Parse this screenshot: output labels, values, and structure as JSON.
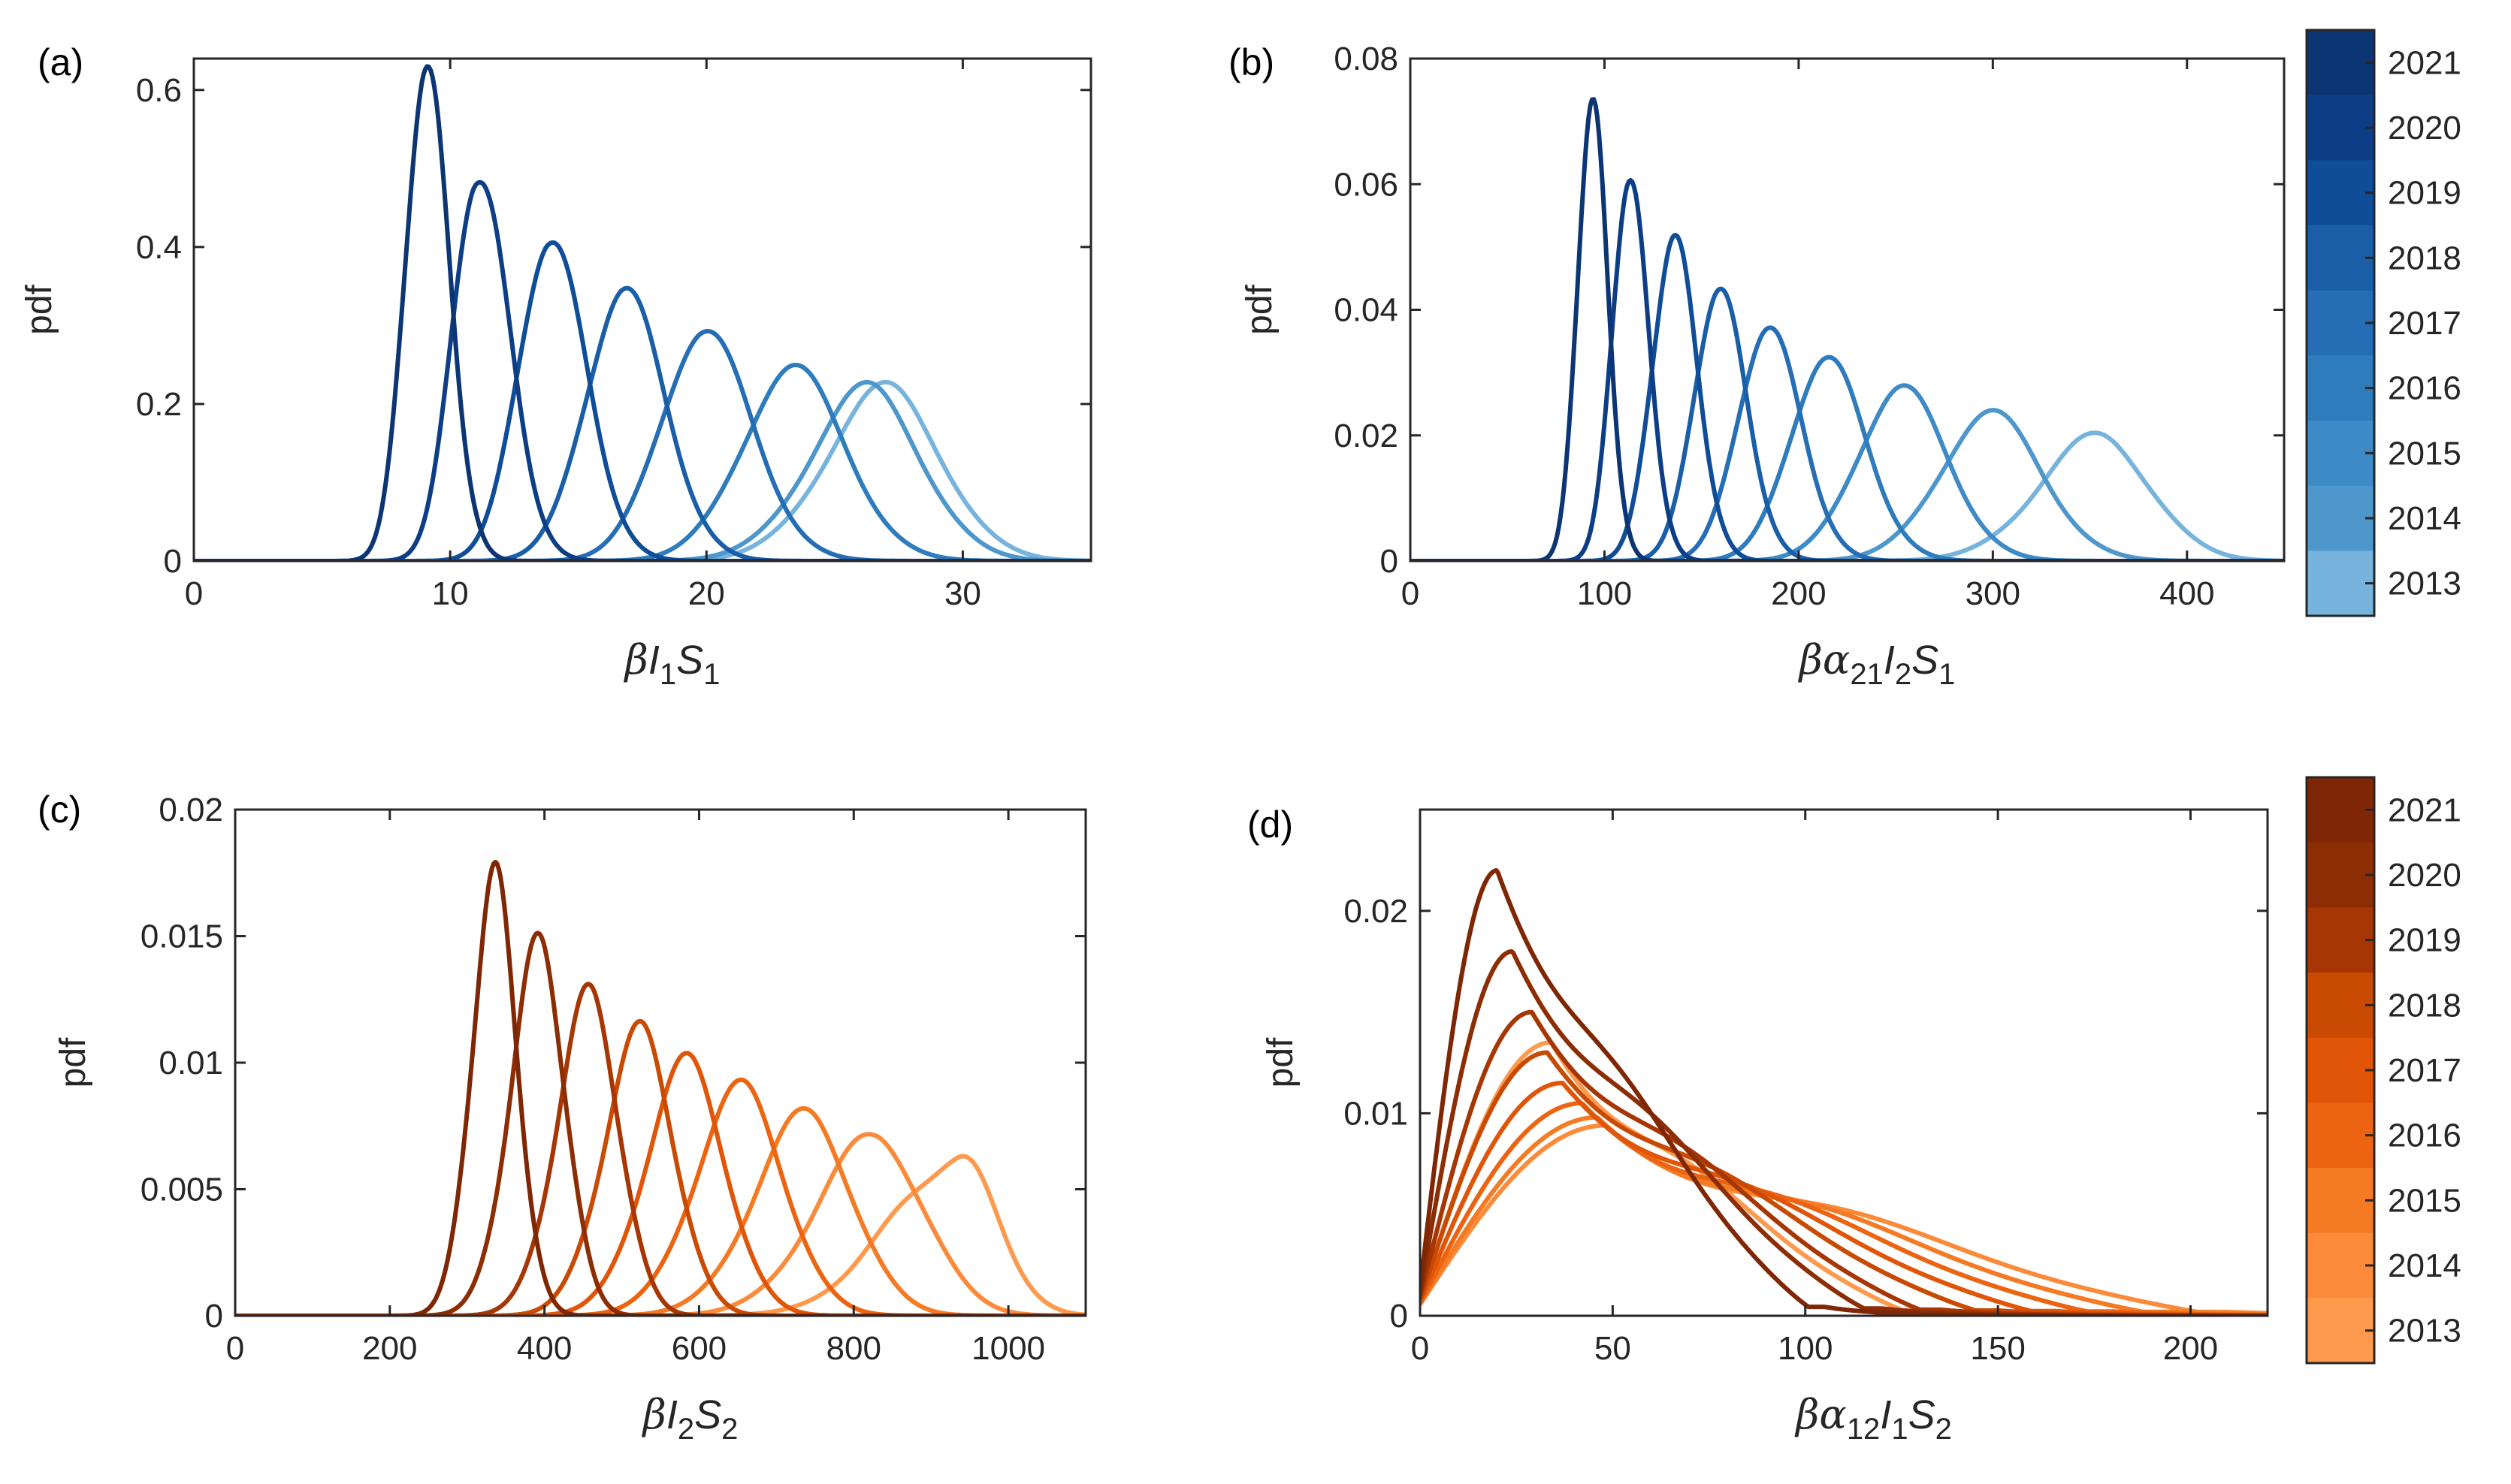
{
  "chart_data": [
    {
      "type": "line",
      "panel_label": "(a)",
      "ylabel": "pdf",
      "xlabel": {
        "beta": "β",
        "v1": "I",
        "s1": "1",
        "v2": "S",
        "s2": "1"
      },
      "xlim": [
        0,
        35
      ],
      "ylim": [
        0,
        0.64
      ],
      "xticks": [
        0,
        10,
        20,
        30
      ],
      "xtick_labels": [
        "0",
        "10",
        "20",
        "30"
      ],
      "yticks": [
        0,
        0.2,
        0.4,
        0.6
      ],
      "ytick_labels": [
        "0",
        "0.2",
        "0.4",
        "0.6"
      ],
      "series": [
        {
          "name": "2021",
          "color": "#0c3573",
          "peak_x": 9.0,
          "peak_y": 0.63,
          "start_x": 6.5,
          "end_x": 12.0,
          "tail": 0.6
        },
        {
          "name": "2020",
          "color": "#0d3e85",
          "peak_x": 11.0,
          "peak_y": 0.5,
          "start_x": 8.0,
          "end_x": 15.0,
          "tail": 1.0
        },
        {
          "name": "2019",
          "color": "#0f4d99",
          "peak_x": 13.8,
          "peak_y": 0.41,
          "start_x": 10.0,
          "end_x": 18.5,
          "tail": 1.2
        },
        {
          "name": "2018",
          "color": "#1a5ea8",
          "peak_x": 16.7,
          "peak_y": 0.34,
          "start_x": 12.0,
          "end_x": 22.0,
          "tail": 1.5
        },
        {
          "name": "2017",
          "color": "#256db5",
          "peak_x": 19.8,
          "peak_y": 0.29,
          "start_x": 14.5,
          "end_x": 26.0,
          "tail": 1.7
        },
        {
          "name": "2016",
          "color": "#2f7cbd",
          "peak_x": 23.3,
          "peak_y": 0.24,
          "start_x": 17.0,
          "end_x": 30.0,
          "tail": 2.0
        },
        {
          "name": "2014",
          "color": "#4d97cd",
          "peak_x": 26.3,
          "peak_y": 0.215,
          "start_x": 19.0,
          "end_x": 33.0,
          "tail": 2.2
        },
        {
          "name": "2013",
          "color": "#76b3dd",
          "peak_x": 27.0,
          "peak_y": 0.215,
          "start_x": 19.5,
          "end_x": 34.0,
          "tail": 2.3
        }
      ]
    },
    {
      "type": "line",
      "panel_label": "(b)",
      "ylabel": "pdf",
      "xlabel": {
        "beta": "β",
        "alpha": "α",
        "a_sub": "21",
        "v1": "I",
        "s1": "2",
        "v2": "S",
        "s2": "1"
      },
      "xlim": [
        0,
        450
      ],
      "ylim": [
        0,
        0.08
      ],
      "xticks": [
        0,
        100,
        200,
        300,
        400
      ],
      "xtick_labels": [
        "0",
        "100",
        "200",
        "300",
        "400"
      ],
      "yticks": [
        0,
        0.02,
        0.04,
        0.06,
        0.08
      ],
      "ytick_labels": [
        "0",
        "0.02",
        "0.04",
        "0.06",
        "0.08"
      ],
      "series": [
        {
          "name": "2021",
          "color": "#0c3573",
          "peak_x": 93,
          "peak_y": 0.073,
          "start_x": 70,
          "end_x": 120,
          "tail": 0.6
        },
        {
          "name": "2020",
          "color": "#0d3e85",
          "peak_x": 112,
          "peak_y": 0.061,
          "start_x": 85,
          "end_x": 145,
          "tail": 0.8
        },
        {
          "name": "2019",
          "color": "#0f4d99",
          "peak_x": 135,
          "peak_y": 0.051,
          "start_x": 100,
          "end_x": 175,
          "tail": 1.0
        },
        {
          "name": "2018",
          "color": "#1a5ea8",
          "peak_x": 158,
          "peak_y": 0.043,
          "start_x": 118,
          "end_x": 205,
          "tail": 1.2
        },
        {
          "name": "2017",
          "color": "#256db5",
          "peak_x": 183,
          "peak_y": 0.037,
          "start_x": 135,
          "end_x": 240,
          "tail": 1.4
        },
        {
          "name": "2016",
          "color": "#2f7cbd",
          "peak_x": 213,
          "peak_y": 0.032,
          "start_x": 155,
          "end_x": 280,
          "tail": 1.6
        },
        {
          "name": "2015",
          "color": "#3d8ac6",
          "peak_x": 252,
          "peak_y": 0.027,
          "start_x": 180,
          "end_x": 330,
          "tail": 1.8
        },
        {
          "name": "2014",
          "color": "#4d97cd",
          "peak_x": 298,
          "peak_y": 0.023,
          "start_x": 215,
          "end_x": 385,
          "tail": 2.0
        },
        {
          "name": "2013",
          "color": "#76b3dd",
          "peak_x": 355,
          "peak_y": 0.0195,
          "start_x": 255,
          "end_x": 440,
          "tail": 2.2
        }
      ]
    },
    {
      "type": "line",
      "panel_label": "(c)",
      "ylabel": "pdf",
      "xlabel": {
        "beta": "β",
        "v1": "I",
        "s1": "2",
        "v2": "S",
        "s2": "2"
      },
      "xlim": [
        0,
        1100
      ],
      "ylim": [
        0,
        0.02
      ],
      "xticks": [
        0,
        200,
        400,
        600,
        800,
        1000
      ],
      "xtick_labels": [
        "0",
        "200",
        "400",
        "600",
        "800",
        "1000"
      ],
      "yticks": [
        0,
        0.005,
        0.01,
        0.015,
        0.02
      ],
      "ytick_labels": [
        "0",
        "0.005",
        "0.01",
        "0.015",
        "0.02"
      ],
      "series": [
        {
          "name": "2021",
          "color": "#7f2704",
          "peak_x": 335,
          "peak_y": 0.017,
          "start_x": 240,
          "end_x": 430,
          "tail": 0.8
        },
        {
          "name": "2020",
          "color": "#8c2d04",
          "peak_x": 395,
          "peak_y": 0.0145,
          "start_x": 270,
          "end_x": 500,
          "tail": 1.0
        },
        {
          "name": "2019",
          "color": "#a63603",
          "peak_x": 460,
          "peak_y": 0.0125,
          "start_x": 320,
          "end_x": 580,
          "tail": 1.2
        },
        {
          "name": "2018",
          "color": "#c94a02",
          "peak_x": 525,
          "peak_y": 0.011,
          "start_x": 370,
          "end_x": 665,
          "tail": 1.4
        },
        {
          "name": "2017",
          "color": "#e05508",
          "peak_x": 585,
          "peak_y": 0.0098,
          "start_x": 410,
          "end_x": 745,
          "tail": 1.6
        },
        {
          "name": "2016",
          "color": "#ec6411",
          "peak_x": 655,
          "peak_y": 0.0088,
          "start_x": 460,
          "end_x": 835,
          "tail": 1.8
        },
        {
          "name": "2015",
          "color": "#f57a24",
          "peak_x": 740,
          "peak_y": 0.0078,
          "start_x": 520,
          "end_x": 930,
          "tail": 2.0
        },
        {
          "name": "2014",
          "color": "#fb8b3a",
          "peak_x": 830,
          "peak_y": 0.007,
          "start_x": 580,
          "end_x": 1030,
          "tail": 2.2
        },
        {
          "name": "2013",
          "color": "#fd9a4e",
          "peak_x": 935,
          "peak_y": 0.0062,
          "start_x": 650,
          "end_x": 1100,
          "tail": 2.4
        }
      ]
    },
    {
      "type": "line",
      "panel_label": "(d)",
      "ylabel": "pdf",
      "xlabel": {
        "beta": "β",
        "alpha": "α",
        "a_sub": "12",
        "v1": "I",
        "s1": "1",
        "v2": "S",
        "s2": "2"
      },
      "xlim": [
        0,
        220
      ],
      "ylim": [
        0,
        0.025
      ],
      "xticks": [
        0,
        50,
        100,
        150,
        200
      ],
      "xtick_labels": [
        "0",
        "50",
        "100",
        "150",
        "200"
      ],
      "yticks": [
        0,
        0.01,
        0.02
      ],
      "ytick_labels": [
        "0",
        "0.01",
        "0.02"
      ],
      "series": [
        {
          "name": "2021",
          "color": "#7f2704",
          "peak_x": 20,
          "peak_y": 0.022,
          "x_end": 105,
          "shoulder": 0.3
        },
        {
          "name": "2020",
          "color": "#8c2d04",
          "peak_x": 24,
          "peak_y": 0.018,
          "x_end": 120,
          "shoulder": 0.35
        },
        {
          "name": "2019",
          "color": "#a63603",
          "peak_x": 29,
          "peak_y": 0.015,
          "x_end": 135,
          "shoulder": 0.4
        },
        {
          "name": "2018",
          "color": "#c94a02",
          "peak_x": 33,
          "peak_y": 0.013,
          "x_end": 150,
          "shoulder": 0.45
        },
        {
          "name": "2017",
          "color": "#e05508",
          "peak_x": 37,
          "peak_y": 0.0115,
          "x_end": 165,
          "shoulder": 0.5
        },
        {
          "name": "2016",
          "color": "#ec6411",
          "peak_x": 42,
          "peak_y": 0.0105,
          "x_end": 180,
          "shoulder": 0.55
        },
        {
          "name": "2015",
          "color": "#f57a24",
          "peak_x": 46,
          "peak_y": 0.0098,
          "x_end": 195,
          "shoulder": 0.6
        },
        {
          "name": "2014",
          "color": "#fb8b3a",
          "peak_x": 48,
          "peak_y": 0.0094,
          "x_end": 210,
          "shoulder": 0.62
        },
        {
          "name": "2013",
          "color": "#fd9a4e",
          "peak_x": 34,
          "peak_y": 0.0135,
          "x_end": 130,
          "shoulder": 0.4
        }
      ]
    }
  ],
  "colorbars": [
    {
      "name": "blue",
      "labels": [
        "2021",
        "2020",
        "2019",
        "2018",
        "2017",
        "2016",
        "2015",
        "2014",
        "2013"
      ],
      "colors": [
        "#0c3573",
        "#0d3e85",
        "#0f4d99",
        "#1a5ea8",
        "#256db5",
        "#2f7cbd",
        "#3d8ac6",
        "#4d97cd",
        "#76b3dd"
      ]
    },
    {
      "name": "orange",
      "labels": [
        "2021",
        "2020",
        "2019",
        "2018",
        "2017",
        "2016",
        "2015",
        "2014",
        "2013"
      ],
      "colors": [
        "#7f2704",
        "#8c2d04",
        "#a63603",
        "#c94a02",
        "#e05508",
        "#ec6411",
        "#f57a24",
        "#fb8b3a",
        "#fd9a4e"
      ]
    }
  ]
}
